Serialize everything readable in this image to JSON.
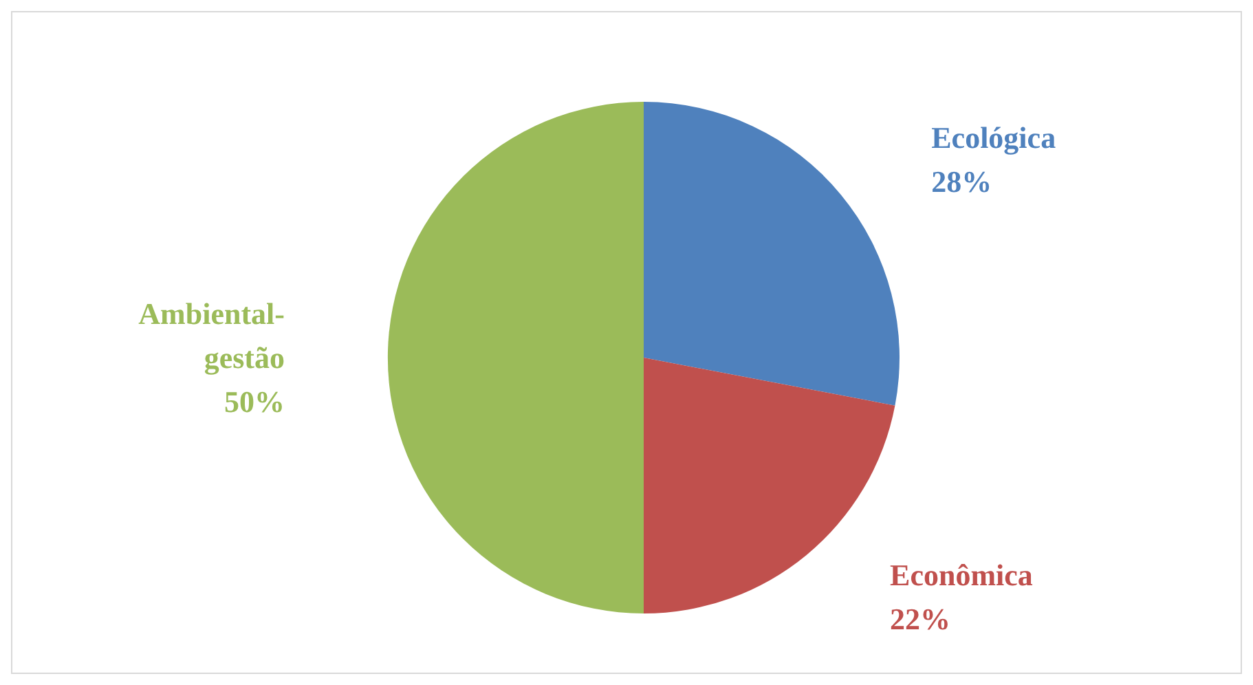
{
  "chart_data": {
    "type": "pie",
    "categories": [
      "Ecológica",
      "Econômica",
      "Ambiental-\ngestão"
    ],
    "values": [
      28,
      22,
      50
    ],
    "value_labels": [
      "28%",
      "22%",
      "50%"
    ],
    "colors": [
      "#4f81bd",
      "#c0504d",
      "#9bbb59"
    ],
    "legend": false
  }
}
